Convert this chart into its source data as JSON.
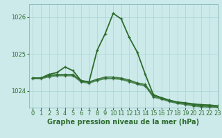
{
  "title": "Graphe pression niveau de la mer (hPa)",
  "background_color": "#cceaea",
  "grid_color": "#aad4d4",
  "line_color": "#2d6b2d",
  "xlim": [
    -0.5,
    23
  ],
  "ylim": [
    1023.55,
    1026.35
  ],
  "yticks": [
    1024,
    1025,
    1026
  ],
  "xticks": [
    0,
    1,
    2,
    3,
    4,
    5,
    6,
    7,
    8,
    9,
    10,
    11,
    12,
    13,
    14,
    15,
    16,
    17,
    18,
    19,
    20,
    21,
    22,
    23
  ],
  "series": [
    [
      1024.35,
      1024.35,
      1024.45,
      1024.5,
      1024.65,
      1024.55,
      1024.28,
      1024.25,
      1025.1,
      1025.55,
      1026.1,
      1025.95,
      1025.45,
      1025.05,
      1024.45,
      1023.9,
      1023.82,
      1023.75,
      1023.7,
      1023.68,
      1023.65,
      1023.63,
      1023.62,
      1023.6
    ],
    [
      1024.35,
      1024.35,
      1024.42,
      1024.45,
      1024.45,
      1024.45,
      1024.28,
      1024.25,
      1024.32,
      1024.38,
      1024.38,
      1024.35,
      1024.3,
      1024.22,
      1024.18,
      1023.88,
      1023.82,
      1023.75,
      1023.7,
      1023.67,
      1023.63,
      1023.61,
      1023.6,
      1023.57
    ],
    [
      1024.35,
      1024.35,
      1024.4,
      1024.43,
      1024.43,
      1024.43,
      1024.26,
      1024.23,
      1024.3,
      1024.35,
      1024.35,
      1024.33,
      1024.27,
      1024.2,
      1024.15,
      1023.85,
      1023.8,
      1023.73,
      1023.68,
      1023.65,
      1023.61,
      1023.59,
      1023.58,
      1023.55
    ],
    [
      1024.33,
      1024.33,
      1024.38,
      1024.41,
      1024.41,
      1024.41,
      1024.24,
      1024.21,
      1024.28,
      1024.33,
      1024.33,
      1024.31,
      1024.25,
      1024.18,
      1024.13,
      1023.83,
      1023.78,
      1023.71,
      1023.66,
      1023.63,
      1023.59,
      1023.57,
      1023.56,
      1023.53
    ]
  ],
  "tick_fontsize": 6,
  "xlabel_fontsize": 7
}
